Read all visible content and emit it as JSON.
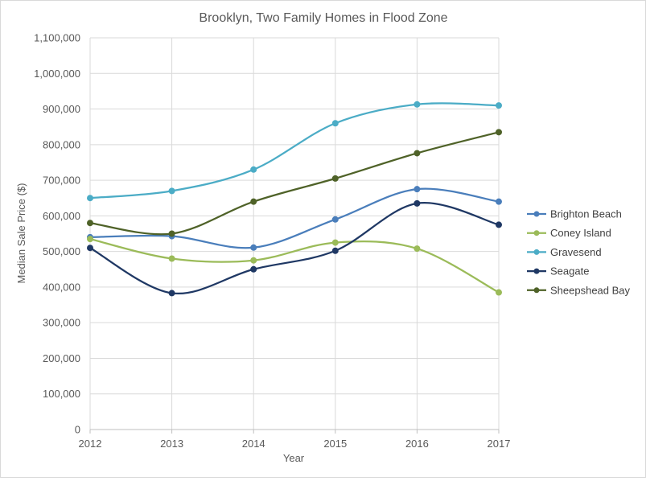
{
  "chart_data": {
    "type": "line",
    "title": "Brooklyn, Two Family Homes  in Flood Zone",
    "xlabel": "Year",
    "ylabel": "Median Sale Price ($)",
    "x": [
      2012,
      2013,
      2014,
      2015,
      2016,
      2017
    ],
    "x_tick_labels": [
      "2012",
      "2013",
      "2014",
      "2015",
      "2016",
      "2017"
    ],
    "ylim": [
      0,
      1100000
    ],
    "y_tick_labels": [
      "0",
      "100,000",
      "200,000",
      "300,000",
      "400,000",
      "500,000",
      "600,000",
      "700,000",
      "800,000",
      "900,000",
      "1,000,000",
      "1,100,000"
    ],
    "grid": "horizontal",
    "legend_position": "right",
    "smooth": true,
    "series": [
      {
        "name": "Brighton Beach",
        "color": "#4a7ebb",
        "values": [
          540000,
          543000,
          511000,
          590000,
          675000,
          640000
        ]
      },
      {
        "name": "Coney Island",
        "color": "#9bbb59",
        "values": [
          535000,
          480000,
          475000,
          525000,
          508000,
          385000
        ]
      },
      {
        "name": "Gravesend",
        "color": "#4bacc6",
        "values": [
          650000,
          670000,
          730000,
          860000,
          913000,
          910000
        ]
      },
      {
        "name": "Seagate",
        "color": "#1f3864",
        "values": [
          510000,
          383000,
          450000,
          502000,
          635000,
          575000
        ]
      },
      {
        "name": "Sheepshead Bay",
        "color": "#4f6228",
        "values": [
          580000,
          550000,
          640000,
          705000,
          776000,
          835000
        ]
      }
    ]
  }
}
